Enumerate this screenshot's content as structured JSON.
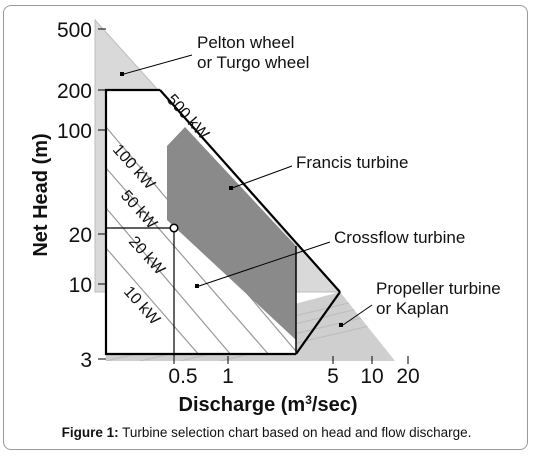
{
  "chart_data": {
    "type": "area",
    "ylabel": "Net Head (m)",
    "xlabel_prefix": "Discharge (m",
    "xlabel_sup": "3",
    "xlabel_suffix": "/sec)",
    "y_scale": "log",
    "x_scale": "log",
    "yticks": [
      3,
      10,
      20,
      100,
      200,
      500
    ],
    "ytick_labels": [
      "3",
      "10",
      "20",
      "100",
      "200",
      "500"
    ],
    "xticks": [
      0.5,
      1,
      5,
      10,
      20
    ],
    "xtick_labels": [
      "0.5",
      "1",
      "5",
      "10",
      "20"
    ],
    "regions": [
      {
        "name": "Pelton wheel",
        "name2": "or Turgo wheel"
      },
      {
        "name": "Francis turbine"
      },
      {
        "name": "Crossflow turbine"
      },
      {
        "name": "Propeller turbine",
        "name2": "or Kaplan"
      }
    ],
    "power_lines": [
      {
        "label": "500 kW",
        "power_kw": 500
      },
      {
        "label": "100 kW",
        "power_kw": 100
      },
      {
        "label": "50 kW",
        "power_kw": 50
      },
      {
        "label": "20 kW",
        "power_kw": 20
      },
      {
        "label": "10 kW",
        "power_kw": 10
      }
    ],
    "example_point": {
      "discharge": 0.45,
      "head": 21
    }
  },
  "caption": {
    "prefix": "Figure 1:",
    "text": " Turbine selection chart based on head and flow discharge."
  }
}
